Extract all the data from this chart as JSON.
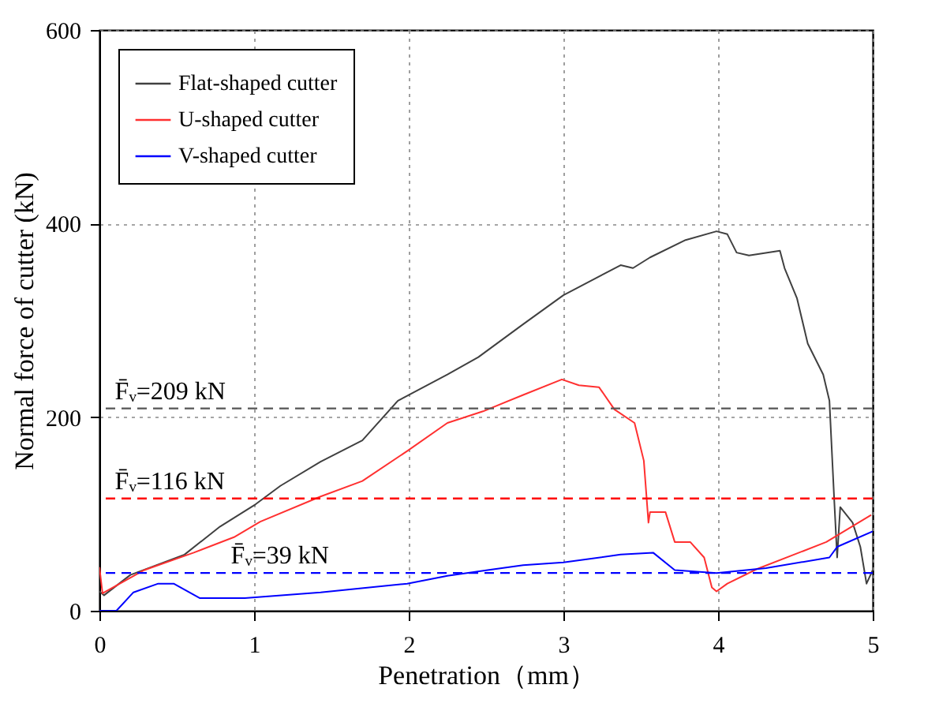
{
  "chart_data": {
    "type": "line",
    "xlabel": "Penetration（mm）",
    "ylabel": "Normal force of cutter (kN)",
    "xlim": [
      0,
      5
    ],
    "ylim": [
      0,
      600
    ],
    "xticks": [
      0,
      1,
      2,
      3,
      4,
      5
    ],
    "yticks": [
      0,
      200,
      400,
      600
    ],
    "grid": true,
    "legend": "top left",
    "line_style": "solid",
    "marker": "none",
    "series": [
      {
        "name": "Flat-shaped cutter",
        "color": "#404040",
        "x": [
          0,
          0.03,
          0.2,
          0.55,
          0.78,
          1.01,
          1.17,
          1.43,
          1.7,
          1.93,
          2.25,
          2.45,
          2.74,
          3.0,
          3.37,
          3.45,
          3.56,
          3.79,
          3.99,
          4.06,
          4.12,
          4.2,
          4.4,
          4.43,
          4.51,
          4.58,
          4.68,
          4.72,
          4.75,
          4.77,
          4.79,
          4.87,
          4.92,
          4.96,
          5.0
        ],
        "values": [
          20,
          16,
          37,
          58,
          87,
          110,
          129,
          154,
          176,
          217,
          244,
          262,
          296,
          326,
          357,
          354,
          365,
          383,
          392,
          389,
          370,
          367,
          372,
          354,
          323,
          276,
          244,
          217,
          118,
          55,
          107,
          91,
          66,
          28,
          42
        ]
      },
      {
        "name": "U-shaped cutter",
        "color": "#ff3030",
        "x": [
          0,
          0.02,
          0.29,
          0.61,
          0.87,
          1.04,
          1.43,
          1.7,
          1.99,
          2.25,
          2.48,
          2.74,
          2.99,
          3.1,
          3.23,
          3.33,
          3.46,
          3.52,
          3.55,
          3.56,
          3.66,
          3.72,
          3.82,
          3.91,
          3.96,
          3.99,
          4.06,
          4.25,
          4.7,
          4.99
        ],
        "values": [
          45,
          18,
          42,
          60,
          76,
          92,
          118,
          134,
          165,
          194,
          206,
          223,
          239,
          233,
          231,
          208,
          194,
          155,
          91,
          102,
          102,
          71,
          71,
          55,
          24,
          20,
          28,
          43,
          71,
          99
        ]
      },
      {
        "name": "V-shaped cutter",
        "color": "#0000ff",
        "x": [
          0,
          0.11,
          0.22,
          0.38,
          0.48,
          0.65,
          0.94,
          1.43,
          1.99,
          2.25,
          2.51,
          2.74,
          3.0,
          3.37,
          3.58,
          3.72,
          3.99,
          4.31,
          4.72,
          4.77,
          5.0
        ],
        "values": [
          0,
          0,
          19,
          28,
          28,
          13,
          13,
          19,
          28,
          36,
          42,
          47,
          50,
          58,
          60,
          42,
          39,
          44,
          55,
          66,
          82
        ]
      }
    ],
    "ref_lines": [
      {
        "axis": "y",
        "value": 209,
        "label": "F̄ᵥ=209 kN",
        "color": "#555555",
        "line_style": "dashed"
      },
      {
        "axis": "y",
        "value": 116,
        "label": "F̄ᵥ=116 kN",
        "color": "#ff0000",
        "line_style": "dashed"
      },
      {
        "axis": "y",
        "value": 39,
        "label": "F̄ᵥ=39 kN",
        "color": "#0000ff",
        "line_style": "dashed"
      }
    ]
  }
}
